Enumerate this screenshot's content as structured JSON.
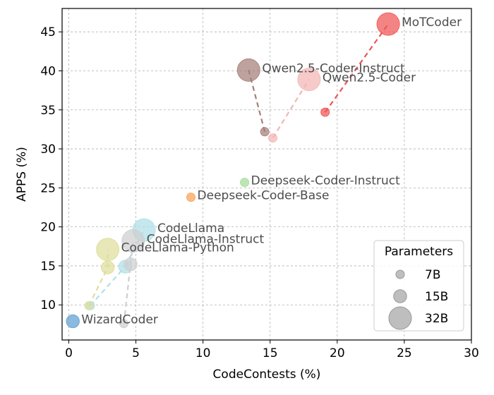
{
  "chart_data": {
    "type": "scatter",
    "title": "",
    "xlabel": "CodeContests (%)",
    "ylabel": "APPS (%)",
    "xlim": [
      -0.5,
      30
    ],
    "ylim": [
      5.5,
      48
    ],
    "xticks": [
      0,
      5,
      10,
      15,
      20,
      25,
      30
    ],
    "yticks": [
      10,
      15,
      20,
      25,
      30,
      35,
      40,
      45
    ],
    "grid": true,
    "legend": {
      "title": "Parameters",
      "placement": "lower-right",
      "entries": [
        {
          "label": "7B",
          "size": 7
        },
        {
          "label": "15B",
          "size": 15
        },
        {
          "label": "32B",
          "size": 32
        }
      ]
    },
    "series": [
      {
        "color": "#f05454",
        "points": [
          {
            "x": 19.1,
            "y": 34.7,
            "size": 7
          },
          {
            "x": 23.8,
            "y": 46.0,
            "size": 32
          }
        ],
        "label": "MoTCoder",
        "label_point": 1
      },
      {
        "color": "#a47e78",
        "points": [
          {
            "x": 14.6,
            "y": 32.2,
            "size": 7
          },
          {
            "x": 13.4,
            "y": 40.1,
            "size": 32
          }
        ],
        "label": "Qwen2.5-Coder-Instruct",
        "label_point": 1
      },
      {
        "color": "#f4b5b5",
        "points": [
          {
            "x": 15.2,
            "y": 31.4,
            "size": 7
          },
          {
            "x": 17.9,
            "y": 38.9,
            "size": 32
          }
        ],
        "label": "Qwen2.5-Coder",
        "label_point": 1
      },
      {
        "color": "#a5dc99",
        "points": [
          {
            "x": 13.1,
            "y": 25.7,
            "size": 7
          }
        ],
        "label": "Deepseek-Coder-Instruct",
        "label_point": 0
      },
      {
        "color": "#f9a253",
        "points": [
          {
            "x": 9.1,
            "y": 23.8,
            "size": 7
          }
        ],
        "label": "Deepseek-Coder-Base",
        "label_point": 0
      },
      {
        "color": "#aedfe8",
        "points": [
          {
            "x": 1.6,
            "y": 9.9,
            "size": 7
          },
          {
            "x": 4.2,
            "y": 14.9,
            "size": 15
          },
          {
            "x": 5.6,
            "y": 19.6,
            "size": 32
          }
        ],
        "label": "CodeLlama",
        "label_point": 2
      },
      {
        "color": "#cfcfcf",
        "points": [
          {
            "x": 4.1,
            "y": 7.6,
            "size": 7
          },
          {
            "x": 4.6,
            "y": 15.2,
            "size": 15
          },
          {
            "x": 4.8,
            "y": 18.2,
            "size": 32
          }
        ],
        "label": "CodeLlama-Instruct",
        "label_point": 2
      },
      {
        "color": "#dede9c",
        "points": [
          {
            "x": 1.5,
            "y": 9.9,
            "size": 7
          },
          {
            "x": 2.9,
            "y": 14.8,
            "size": 15
          },
          {
            "x": 2.9,
            "y": 17.1,
            "size": 32
          }
        ],
        "label": "CodeLlama-Python",
        "label_point": 2
      },
      {
        "color": "#5f9fd3",
        "points": [
          {
            "x": 0.3,
            "y": 7.9,
            "size": 15
          }
        ],
        "label": "WizardCoder",
        "label_point": 0
      }
    ]
  }
}
